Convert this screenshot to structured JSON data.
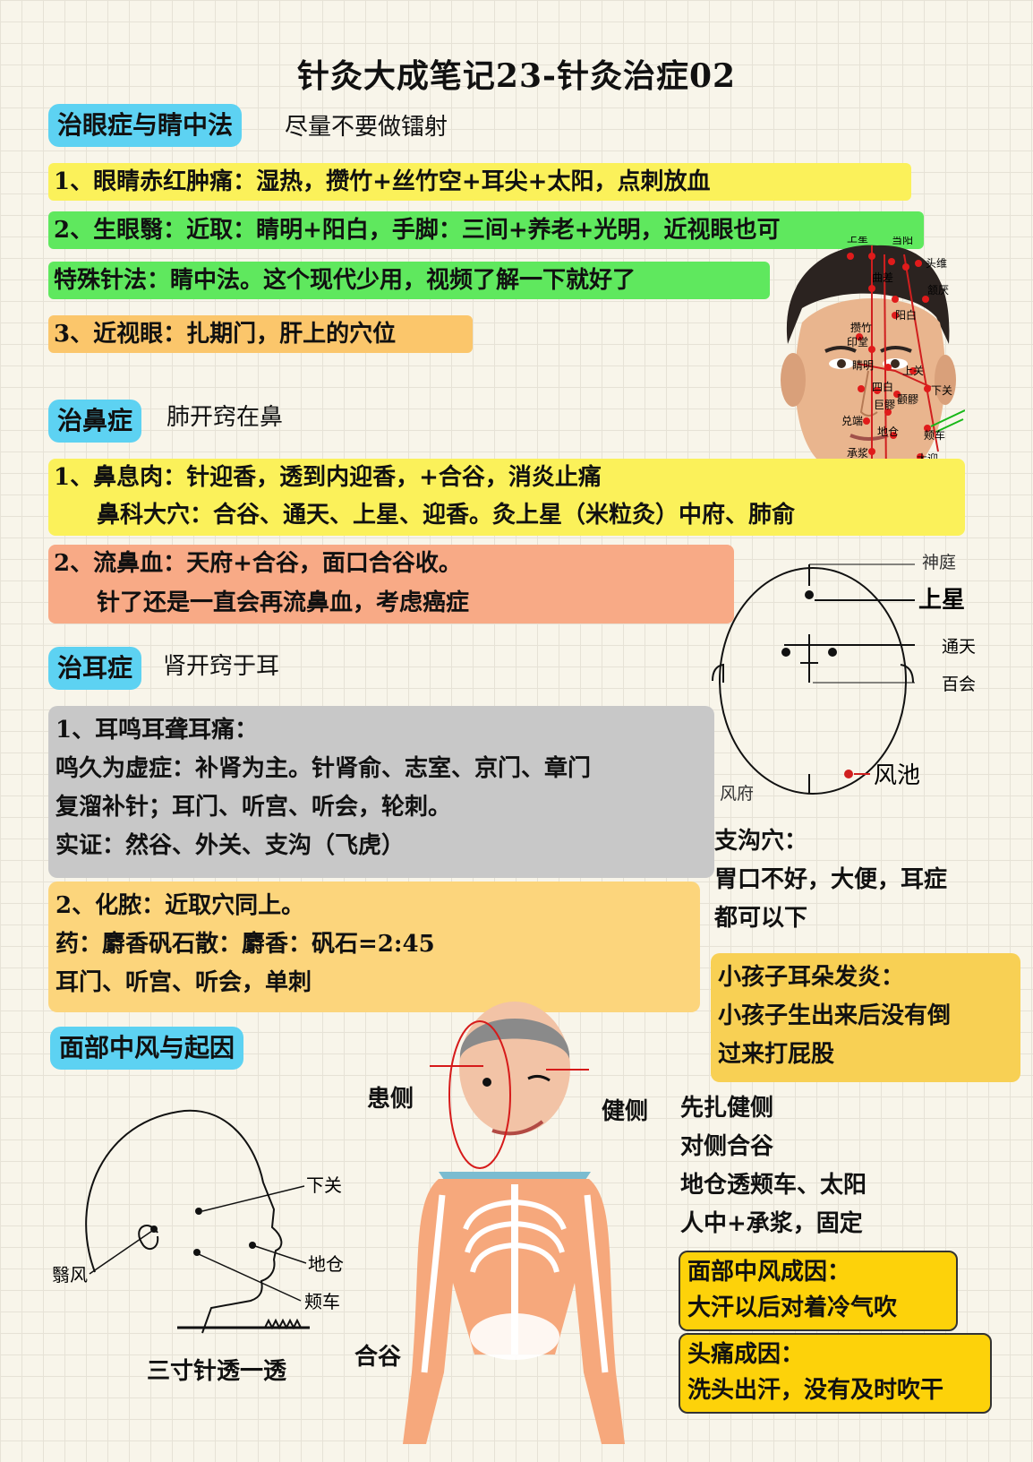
{
  "title": "针灸大成笔记23-针灸治症02",
  "eye": {
    "heading": "治眼症与睛中法",
    "note": "尽量不要做镭射",
    "item1": "1、眼睛赤红肿痛：湿热，攒竹+丝竹空+耳尖+太阳，点刺放血",
    "item2": "2、生眼翳：近取：睛明+阳白，手脚：三间+养老+光明，近视眼也可",
    "special": "特殊针法：睛中法。这个现代少用，视频了解一下就好了",
    "item3": "3、近视眼：扎期门，肝上的穴位"
  },
  "nose": {
    "heading": "治鼻症",
    "note": "肺开窍在鼻",
    "item1_line1": "1、鼻息肉：针迎香，透到内迎香，+合谷，消炎止痛",
    "item1_line2": "鼻科大穴：合谷、通天、上星、迎香。灸上星（米粒灸）中府、肺俞",
    "item2_line1": "2、流鼻血：天府+合谷，面口合谷收。",
    "item2_line2": "针了还是一直会再流鼻血，考虑癌症"
  },
  "ear": {
    "heading": "治耳症",
    "note": "肾开窍于耳",
    "item1_lines": [
      "1、耳鸣耳聋耳痛：",
      "鸣久为虚症：补肾为主。针肾俞、志室、京门、章门",
      "复溜补针；耳门、听宫、听会，轮刺。",
      "实证：然谷、外关、支沟（飞虎）"
    ],
    "item2_lines": [
      "2、化脓：近取穴同上。",
      "药：麝香矾石散：麝香：矾石=2:45",
      "耳门、听宫、听会，单刺"
    ]
  },
  "zhigou": {
    "lines": [
      "支沟穴：",
      "胃口不好，大便，耳症",
      "都可以下"
    ]
  },
  "child": {
    "lines": [
      "小孩子耳朵发炎：",
      "小孩子生出来后没有倒",
      "过来打屁股"
    ]
  },
  "face": {
    "heading": "面部中风与起因",
    "affected": "患侧",
    "healthy": "健侧",
    "hegu": "合谷",
    "needle_caption": "三寸针透一透",
    "steps": [
      "先扎健侧",
      "对侧合谷",
      "地仓透颊车、太阳",
      "人中+承浆，固定"
    ],
    "cause1": [
      "面部中风成因：",
      "大汗以后对着冷气吹"
    ],
    "cause2": [
      "头痛成因：",
      "洗头出汗，没有及时吹干"
    ]
  },
  "head_points": {
    "shenting": "神庭",
    "shangxing": "上星",
    "tongtian": "通天",
    "baihui": "百会",
    "fengchi": "风池",
    "fengfu": "风府"
  },
  "profile_points": {
    "xiaguan": "下关",
    "dicang": "地仓",
    "jiache": "颊车",
    "yifeng": "翳风"
  },
  "face_points": [
    "上星",
    "当阳",
    "头维",
    "曲差",
    "颔厌",
    "阳白",
    "攒竹",
    "印堂",
    "睛明",
    "上关",
    "四白",
    "下关",
    "巨髎",
    "颧髎",
    "兑端",
    "地仓",
    "颊车",
    "承浆",
    "大迎"
  ],
  "colors": {
    "section": "#5dd2f2",
    "yellow": "#fbf15a",
    "green": "#5fe85e",
    "orange": "#fbc66b",
    "salmon": "#f8aa86",
    "gray": "#c8c8c8",
    "gold": "#f8d054"
  }
}
